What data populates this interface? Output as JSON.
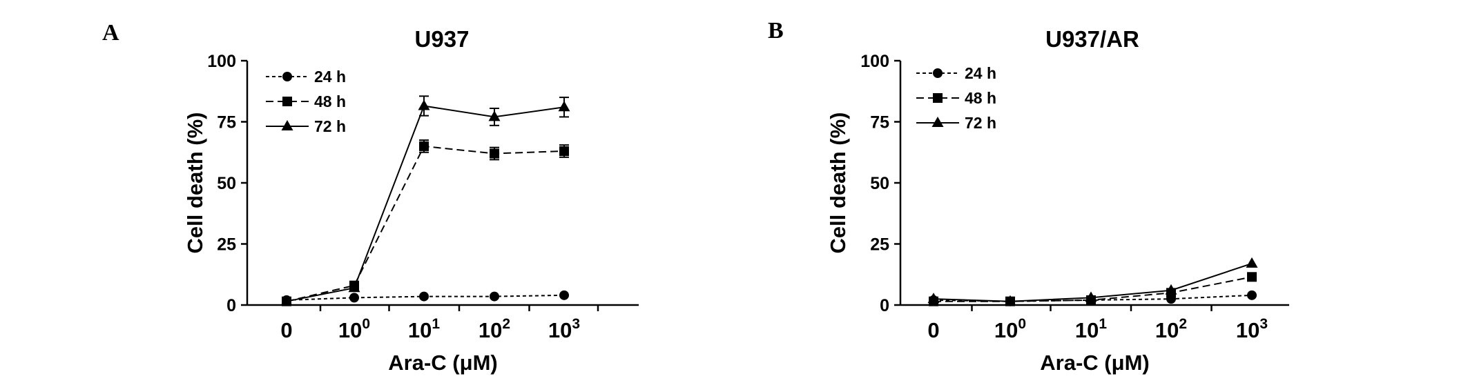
{
  "chart_data": [
    {
      "panel": "A",
      "type": "line",
      "title": "U937",
      "xlabel": "Ara-C (μM)",
      "ylabel": "Cell death (%)",
      "categories": [
        {
          "base": "0",
          "exp": ""
        },
        {
          "base": "10",
          "exp": "0"
        },
        {
          "base": "10",
          "exp": "1"
        },
        {
          "base": "10",
          "exp": "2"
        },
        {
          "base": "10",
          "exp": "3"
        }
      ],
      "yticks": [
        "0",
        "25",
        "50",
        "75",
        "100"
      ],
      "ylim": [
        0,
        100
      ],
      "legend_position": "top-left",
      "series": [
        {
          "name": "24 h",
          "marker": "circle",
          "line": "dotted",
          "values": [
            2,
            3,
            3.5,
            3.5,
            4
          ],
          "errors": [
            0,
            0,
            0,
            0,
            0
          ]
        },
        {
          "name": "48 h",
          "marker": "square",
          "line": "dashed",
          "values": [
            1.5,
            8,
            65,
            62,
            63
          ],
          "errors": [
            0,
            0,
            2.5,
            2.5,
            2.5
          ]
        },
        {
          "name": "72 h",
          "marker": "triangle",
          "line": "solid",
          "values": [
            1.5,
            7,
            81.5,
            77,
            81
          ],
          "errors": [
            0,
            0,
            4,
            3.5,
            4
          ]
        }
      ]
    },
    {
      "panel": "B",
      "type": "line",
      "title": "U937/AR",
      "xlabel": "Ara-C (μM)",
      "ylabel": "Cell death (%)",
      "categories": [
        {
          "base": "0",
          "exp": ""
        },
        {
          "base": "10",
          "exp": "0"
        },
        {
          "base": "10",
          "exp": "1"
        },
        {
          "base": "10",
          "exp": "2"
        },
        {
          "base": "10",
          "exp": "3"
        }
      ],
      "yticks": [
        "0",
        "25",
        "50",
        "75",
        "100"
      ],
      "ylim": [
        0,
        100
      ],
      "legend_position": "top-left",
      "series": [
        {
          "name": "24 h",
          "marker": "circle",
          "line": "dotted",
          "values": [
            2,
            1.5,
            2,
            2.5,
            4
          ],
          "errors": [
            0,
            0,
            0,
            0,
            0
          ]
        },
        {
          "name": "48 h",
          "marker": "square",
          "line": "dashed",
          "values": [
            1.5,
            1.5,
            2,
            5,
            11.5
          ],
          "errors": [
            0,
            0,
            0,
            0,
            0
          ]
        },
        {
          "name": "72 h",
          "marker": "triangle",
          "line": "solid",
          "values": [
            2.5,
            1.5,
            3,
            6,
            17
          ],
          "errors": [
            0,
            0,
            0,
            0,
            0
          ]
        }
      ]
    }
  ]
}
